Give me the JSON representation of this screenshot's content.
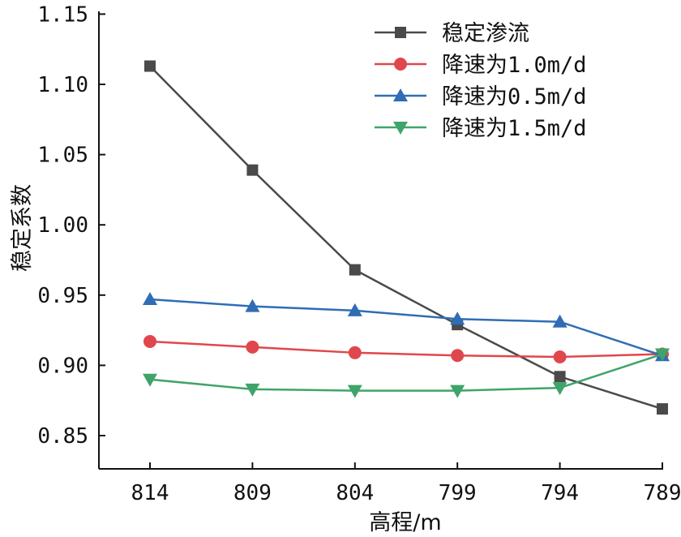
{
  "chart_data": {
    "type": "line",
    "xlabel": "高程/m",
    "ylabel": "稳定系数",
    "categories": [
      "814",
      "809",
      "804",
      "799",
      "794",
      "789"
    ],
    "yticks": [
      "0.85",
      "0.90",
      "0.95",
      "1.00",
      "1.05",
      "1.10",
      "1.15"
    ],
    "ylim": [
      0.825,
      1.15
    ],
    "grid": false,
    "legend_position": "top-right",
    "series": [
      {
        "name": "稳定渗流",
        "values": [
          1.113,
          1.039,
          0.968,
          0.929,
          0.892,
          0.869
        ],
        "color": "#4a4a4a",
        "marker": "square"
      },
      {
        "name": "降速为1.0m/d",
        "values": [
          0.917,
          0.913,
          0.909,
          0.907,
          0.906,
          0.908
        ],
        "color": "#e0474c",
        "marker": "circle"
      },
      {
        "name": "降速为0.5m/d",
        "values": [
          0.947,
          0.942,
          0.939,
          0.933,
          0.931,
          0.907
        ],
        "color": "#2f6db5",
        "marker": "triangle-up"
      },
      {
        "name": "降速为1.5m/d",
        "values": [
          0.89,
          0.883,
          0.882,
          0.882,
          0.884,
          0.908
        ],
        "color": "#3fa46a",
        "marker": "triangle-down"
      }
    ]
  }
}
